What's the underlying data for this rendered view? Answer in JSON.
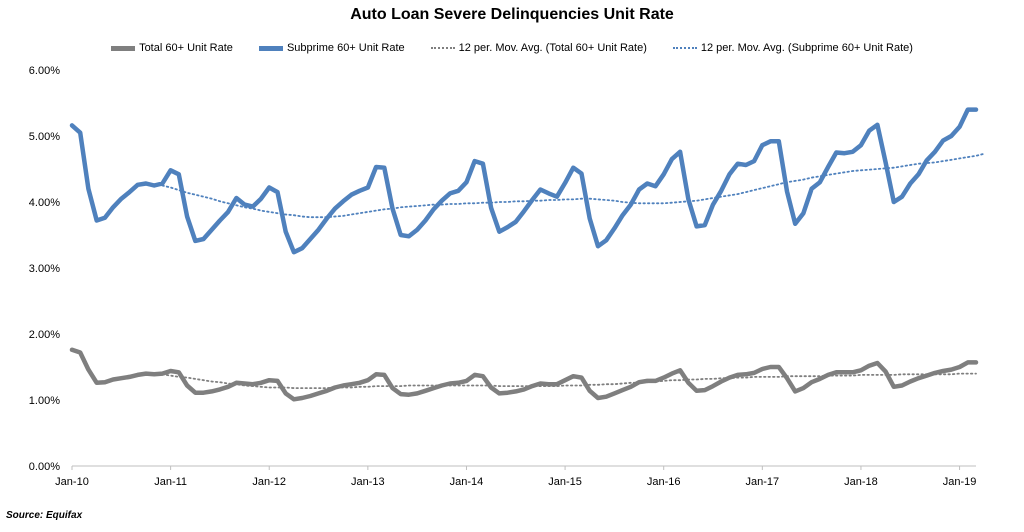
{
  "chart_data": {
    "type": "line",
    "title": "Auto Loan Severe Delinquencies Unit Rate",
    "xlabel": "",
    "ylabel": "",
    "ylim": [
      0,
      6
    ],
    "y_tick_labels": [
      "0.00%",
      "1.00%",
      "2.00%",
      "3.00%",
      "4.00%",
      "5.00%",
      "6.00%"
    ],
    "x_tick_labels": [
      "Jan-10",
      "Jan-11",
      "Jan-12",
      "Jan-13",
      "Jan-14",
      "Jan-15",
      "Jan-16",
      "Jan-17",
      "Jan-18",
      "Jan-19"
    ],
    "x_start": "Jan-10",
    "x_frequency": "monthly",
    "grid": false,
    "legend_position": "top",
    "series": [
      {
        "name": "Total 60+ Unit Rate",
        "style": "solid",
        "color": "#7f7f7f",
        "values": [
          1.76,
          1.72,
          1.46,
          1.26,
          1.27,
          1.31,
          1.33,
          1.35,
          1.38,
          1.4,
          1.39,
          1.4,
          1.44,
          1.42,
          1.22,
          1.11,
          1.11,
          1.13,
          1.16,
          1.2,
          1.26,
          1.25,
          1.24,
          1.26,
          1.3,
          1.29,
          1.1,
          1.01,
          1.03,
          1.06,
          1.1,
          1.14,
          1.19,
          1.22,
          1.24,
          1.26,
          1.3,
          1.39,
          1.38,
          1.18,
          1.09,
          1.08,
          1.1,
          1.14,
          1.18,
          1.22,
          1.25,
          1.26,
          1.29,
          1.38,
          1.36,
          1.19,
          1.1,
          1.11,
          1.13,
          1.16,
          1.21,
          1.25,
          1.24,
          1.24,
          1.3,
          1.36,
          1.34,
          1.14,
          1.03,
          1.05,
          1.1,
          1.15,
          1.2,
          1.27,
          1.29,
          1.29,
          1.34,
          1.4,
          1.45,
          1.26,
          1.14,
          1.15,
          1.21,
          1.28,
          1.34,
          1.38,
          1.39,
          1.41,
          1.47,
          1.5,
          1.5,
          1.33,
          1.13,
          1.18,
          1.27,
          1.32,
          1.38,
          1.42,
          1.42,
          1.42,
          1.45,
          1.52,
          1.56,
          1.43,
          1.2,
          1.22,
          1.28,
          1.33,
          1.37,
          1.41,
          1.44,
          1.46,
          1.5,
          1.57,
          1.57
        ]
      },
      {
        "name": "Subprime 60+ Unit Rate",
        "style": "solid",
        "color": "#4f81bd",
        "values": [
          5.16,
          5.05,
          4.2,
          3.72,
          3.76,
          3.92,
          4.05,
          4.15,
          4.26,
          4.28,
          4.25,
          4.28,
          4.48,
          4.42,
          3.78,
          3.41,
          3.44,
          3.58,
          3.72,
          3.85,
          4.06,
          3.96,
          3.93,
          4.05,
          4.22,
          4.15,
          3.55,
          3.24,
          3.3,
          3.44,
          3.58,
          3.75,
          3.9,
          4.01,
          4.11,
          4.17,
          4.22,
          4.53,
          4.52,
          3.9,
          3.5,
          3.48,
          3.58,
          3.72,
          3.89,
          4.02,
          4.13,
          4.17,
          4.3,
          4.62,
          4.58,
          3.91,
          3.55,
          3.62,
          3.7,
          3.86,
          4.03,
          4.19,
          4.13,
          4.08,
          4.29,
          4.52,
          4.43,
          3.75,
          3.33,
          3.42,
          3.6,
          3.8,
          3.96,
          4.19,
          4.28,
          4.24,
          4.42,
          4.65,
          4.76,
          4.04,
          3.63,
          3.65,
          3.96,
          4.17,
          4.42,
          4.58,
          4.56,
          4.62,
          4.86,
          4.92,
          4.92,
          4.16,
          3.67,
          3.83,
          4.2,
          4.3,
          4.53,
          4.75,
          4.74,
          4.76,
          4.86,
          5.08,
          5.17,
          4.6,
          4.0,
          4.08,
          4.28,
          4.42,
          4.63,
          4.76,
          4.93,
          5.0,
          5.14,
          5.4,
          5.4
        ]
      },
      {
        "name": "12 per. Mov. Avg. (Total 60+ Unit Rate)",
        "style": "dotted",
        "color": "#7f7f7f",
        "start_index": 11,
        "values": [
          1.39,
          1.37,
          1.35,
          1.34,
          1.32,
          1.3,
          1.28,
          1.27,
          1.25,
          1.24,
          1.22,
          1.21,
          1.2,
          1.19,
          1.19,
          1.19,
          1.18,
          1.18,
          1.18,
          1.18,
          1.18,
          1.19,
          1.19,
          1.19,
          1.2,
          1.2,
          1.21,
          1.21,
          1.21,
          1.21,
          1.22,
          1.22,
          1.22,
          1.22,
          1.22,
          1.22,
          1.22,
          1.22,
          1.22,
          1.22,
          1.22,
          1.21,
          1.21,
          1.21,
          1.21,
          1.21,
          1.21,
          1.21,
          1.21,
          1.22,
          1.22,
          1.22,
          1.23,
          1.23,
          1.24,
          1.24,
          1.25,
          1.26,
          1.26,
          1.27,
          1.28,
          1.29,
          1.3,
          1.3,
          1.31,
          1.31,
          1.32,
          1.32,
          1.33,
          1.33,
          1.34,
          1.34,
          1.35,
          1.35,
          1.35,
          1.35,
          1.36,
          1.36,
          1.36,
          1.36,
          1.36,
          1.37,
          1.37,
          1.37,
          1.37,
          1.38,
          1.38,
          1.38,
          1.38,
          1.38,
          1.39,
          1.39,
          1.39,
          1.39,
          1.39,
          1.39,
          1.39,
          1.4,
          1.4,
          1.4
        ]
      },
      {
        "name": "12 per. Mov. Avg. (Subprime 60+ Unit Rate)",
        "style": "dotted",
        "color": "#4f81bd",
        "start_index": 11,
        "values": [
          4.25,
          4.22,
          4.18,
          4.14,
          4.11,
          4.08,
          4.05,
          4.01,
          3.98,
          3.95,
          3.92,
          3.9,
          3.87,
          3.85,
          3.83,
          3.81,
          3.8,
          3.78,
          3.77,
          3.77,
          3.77,
          3.78,
          3.79,
          3.81,
          3.83,
          3.85,
          3.87,
          3.89,
          3.9,
          3.92,
          3.93,
          3.94,
          3.95,
          3.96,
          3.96,
          3.97,
          3.97,
          3.98,
          3.98,
          3.99,
          3.99,
          4.0,
          4.0,
          4.01,
          4.01,
          4.02,
          4.02,
          4.03,
          4.03,
          4.04,
          4.04,
          4.05,
          4.05,
          4.04,
          4.03,
          4.02,
          4.0,
          3.99,
          3.98,
          3.98,
          3.98,
          3.98,
          3.99,
          4.0,
          4.01,
          4.02,
          4.04,
          4.06,
          4.08,
          4.1,
          4.12,
          4.15,
          4.18,
          4.21,
          4.24,
          4.27,
          4.3,
          4.32,
          4.34,
          4.37,
          4.39,
          4.41,
          4.43,
          4.45,
          4.47,
          4.48,
          4.49,
          4.5,
          4.51,
          4.52,
          4.54,
          4.56,
          4.58,
          4.59,
          4.6,
          4.62,
          4.64,
          4.66,
          4.68,
          4.7,
          4.73
        ]
      }
    ]
  },
  "source": "Source: Equifax"
}
